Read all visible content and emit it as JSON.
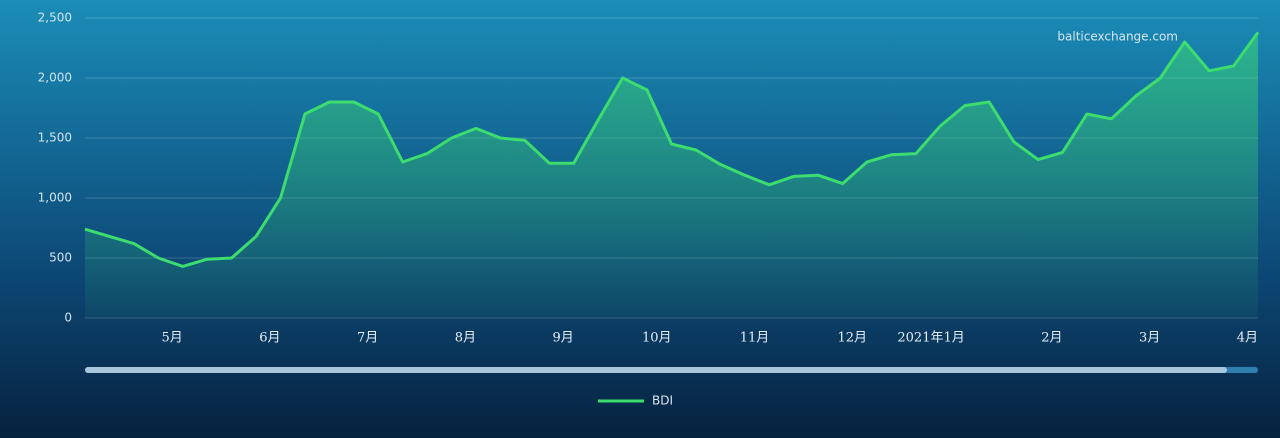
{
  "chart_data": {
    "type": "line",
    "watermark": "balticexchange.com",
    "categories": [
      null,
      null,
      null,
      null,
      "5月",
      null,
      null,
      null,
      "6月",
      null,
      null,
      null,
      "7月",
      null,
      null,
      null,
      "8月",
      null,
      null,
      null,
      "9月",
      null,
      null,
      null,
      "10月",
      null,
      null,
      null,
      "11月",
      null,
      null,
      null,
      "12月",
      null,
      null,
      null,
      "2021年1月",
      null,
      null,
      null,
      "2月",
      null,
      null,
      null,
      "3月",
      null,
      null,
      null,
      "4月"
    ],
    "series": [
      {
        "name": "BDI",
        "color": "#3ddc6e",
        "values": [
          740,
          680,
          620,
          500,
          430,
          490,
          500,
          680,
          1000,
          1700,
          1800,
          1800,
          1700,
          1300,
          1370,
          1500,
          1580,
          1500,
          1480,
          1290,
          1290,
          1650,
          2000,
          1900,
          1450,
          1400,
          1280,
          1190,
          1110,
          1180,
          1190,
          1120,
          1300,
          1360,
          1370,
          1600,
          1770,
          1800,
          1470,
          1320,
          1380,
          1700,
          1660,
          1850,
          2000,
          2300,
          2060,
          2100,
          2380
        ]
      }
    ],
    "ylim": [
      0,
      2500
    ],
    "yticks": [
      0,
      500,
      {
        "value": 1000,
        "label": "1,000"
      },
      {
        "value": 1500,
        "label": "1,500"
      },
      {
        "value": 2000,
        "label": "2,000"
      },
      {
        "value": 2500,
        "label": "2,500"
      }
    ],
    "grid": true
  }
}
